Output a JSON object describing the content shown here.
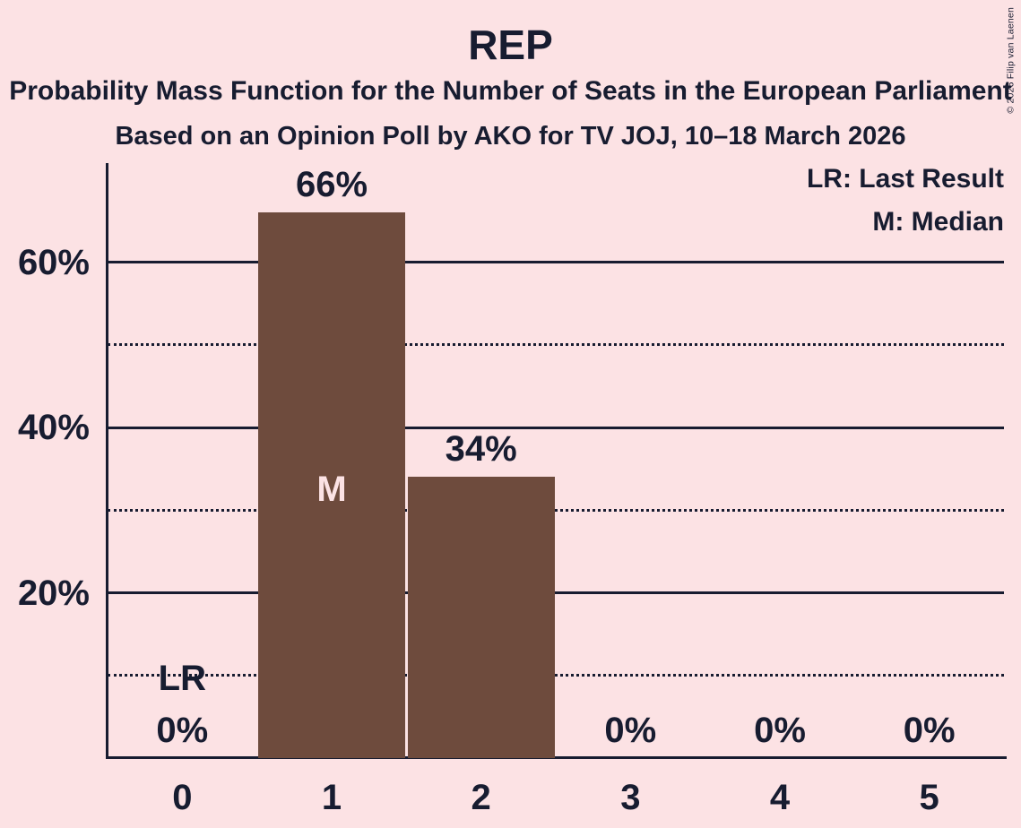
{
  "chart_data": {
    "type": "bar",
    "title": "REP",
    "subtitle": "Probability Mass Function for the Number of Seats in the European Parliament",
    "source_line": "Based on an Opinion Poll by AKO for TV JOJ, 10–18 March 2026",
    "categories": [
      "0",
      "1",
      "2",
      "3",
      "4",
      "5"
    ],
    "values": [
      0,
      66,
      34,
      0,
      0,
      0
    ],
    "value_labels": [
      "0%",
      "66%",
      "34%",
      "0%",
      "0%",
      "0%"
    ],
    "xlabel": "",
    "ylabel": "",
    "ylim": [
      0,
      72
    ],
    "yticks": [
      {
        "value": 20,
        "label": "20%"
      },
      {
        "value": 40,
        "label": "40%"
      },
      {
        "value": 60,
        "label": "60%"
      }
    ],
    "gridlines_solid": [
      20,
      40,
      60
    ],
    "gridlines_dotted": [
      10,
      30,
      50
    ],
    "grid": true,
    "legend_position": "top-right",
    "legend": [
      {
        "abbr": "LR",
        "label": "LR: Last Result"
      },
      {
        "abbr": "M",
        "label": "M: Median"
      }
    ],
    "annotations": [
      {
        "category_index": 0,
        "text": "LR",
        "y_pct": 9.6,
        "variant": "on-background"
      },
      {
        "category_index": 1,
        "text": "M",
        "y_pct": 32.5,
        "variant": "on-bar"
      }
    ],
    "median_category": "1",
    "last_result_category": "0"
  },
  "copyright": "© 2026 Filip van Laenen",
  "colors": {
    "background": "#fce2e4",
    "bar": "#6e4b3d",
    "text": "#171c30",
    "on_bar_text": "#fce2e4"
  }
}
